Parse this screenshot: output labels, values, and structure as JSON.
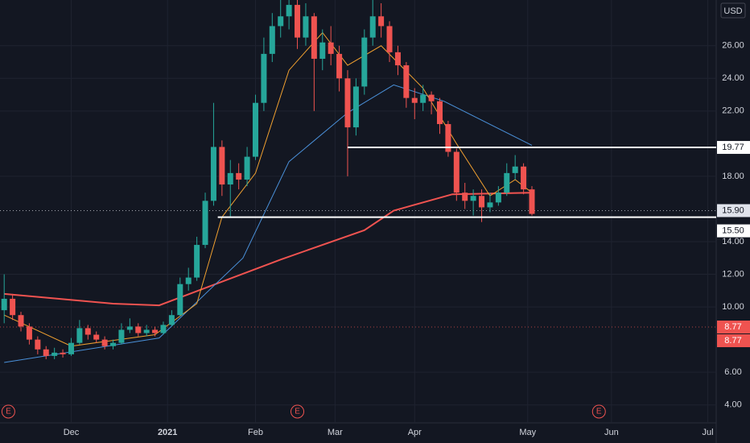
{
  "chart_data": {
    "type": "candlestick",
    "currency": "USD",
    "x": [
      -16,
      -14,
      -12,
      -10,
      -8,
      -6,
      -4,
      -2,
      0,
      2,
      4,
      6,
      8,
      10,
      12,
      14,
      16,
      18,
      20,
      22,
      24,
      26,
      28,
      30,
      32,
      34,
      36,
      38,
      40,
      42,
      44,
      46,
      48,
      50,
      52,
      54,
      56,
      58,
      60,
      62,
      64,
      66,
      68,
      70,
      72,
      74,
      76,
      78,
      80,
      82,
      84,
      86,
      88,
      90,
      92,
      94,
      96,
      98,
      100,
      102,
      104,
      106,
      108,
      110
    ],
    "open": [
      9.8,
      10.5,
      9.5,
      8.8,
      8.0,
      7.4,
      7.0,
      7.2,
      7.1,
      7.8,
      8.7,
      8.3,
      8.0,
      7.6,
      7.8,
      8.6,
      8.8,
      8.4,
      8.6,
      8.4,
      8.9,
      9.5,
      11.4,
      11.8,
      13.8,
      16.5,
      19.8,
      17.5,
      18.2,
      17.8,
      19.2,
      22.5,
      25.5,
      27.2,
      27.8,
      28.5,
      26.5,
      27.8,
      25.2,
      26.2,
      25.5,
      24.0,
      21.0,
      23.5,
      26.5,
      27.8,
      27.2,
      25.6,
      24.8,
      22.8,
      22.5,
      23.0,
      22.6,
      21.2,
      19.5,
      17.0,
      16.5,
      16.8,
      16.1,
      16.4,
      17.0,
      18.2,
      18.6,
      17.2
    ],
    "high": [
      12.0,
      10.8,
      9.7,
      9.0,
      8.2,
      7.6,
      7.5,
      7.4,
      8.1,
      9.2,
      8.9,
      8.5,
      8.2,
      8.0,
      9.0,
      9.3,
      9.0,
      8.9,
      8.8,
      9.1,
      9.8,
      11.8,
      12.4,
      14.3,
      17.0,
      22.5,
      20.2,
      19.0,
      18.8,
      19.8,
      23.0,
      26.5,
      28.0,
      28.8,
      28.8,
      28.8,
      28.6,
      28.0,
      27.0,
      27.2,
      26.0,
      24.5,
      24.0,
      27.0,
      28.8,
      28.6,
      27.5,
      26.0,
      25.0,
      23.4,
      23.6,
      23.2,
      22.8,
      21.4,
      19.7,
      17.6,
      17.2,
      17.2,
      17.0,
      17.4,
      18.8,
      19.3,
      18.8,
      17.4
    ],
    "low": [
      9.0,
      9.2,
      8.5,
      7.7,
      7.1,
      6.8,
      6.8,
      6.9,
      7.0,
      7.7,
      8.0,
      7.8,
      7.4,
      7.4,
      7.7,
      8.4,
      8.2,
      8.2,
      8.2,
      8.3,
      8.8,
      9.4,
      11.0,
      11.6,
      13.6,
      16.2,
      16.8,
      15.5,
      17.2,
      17.4,
      19.0,
      22.0,
      25.0,
      26.5,
      27.0,
      25.8,
      26.0,
      22.0,
      24.5,
      24.8,
      23.2,
      18.0,
      20.5,
      23.0,
      26.0,
      26.5,
      25.0,
      24.2,
      22.2,
      21.5,
      22.0,
      21.8,
      20.6,
      19.2,
      16.5,
      16.0,
      15.6,
      15.2,
      15.8,
      16.2,
      16.8,
      17.8,
      16.9,
      15.6
    ],
    "close": [
      10.5,
      9.5,
      8.8,
      8.0,
      7.4,
      7.0,
      7.2,
      7.1,
      7.8,
      8.7,
      8.3,
      8.0,
      7.6,
      7.8,
      8.6,
      8.8,
      8.4,
      8.6,
      8.4,
      8.9,
      9.5,
      11.4,
      11.8,
      13.8,
      16.5,
      19.8,
      17.5,
      18.2,
      17.8,
      19.2,
      22.5,
      25.5,
      27.2,
      27.8,
      28.5,
      26.5,
      27.8,
      25.2,
      26.2,
      25.5,
      24.0,
      21.0,
      23.5,
      26.5,
      27.8,
      27.2,
      25.6,
      24.8,
      22.8,
      22.5,
      23.0,
      22.6,
      21.2,
      19.5,
      17.0,
      16.5,
      16.8,
      16.1,
      16.4,
      17.0,
      18.2,
      18.6,
      17.2,
      15.7
    ],
    "up_color": "#26a69a",
    "down_color": "#ef5350",
    "series": [
      {
        "color": "#f05350",
        "x": [
          -16,
          10,
          21,
          50,
          70,
          77,
          91,
          110
        ],
        "values": [
          10.8,
          10.2,
          10.1,
          12.9,
          14.7,
          15.9,
          16.9,
          17.0
        ]
      },
      {
        "color": "#4a90d9",
        "x": [
          -16,
          21,
          41,
          52,
          66,
          77,
          89,
          110
        ],
        "values": [
          6.6,
          8.1,
          13.0,
          18.9,
          21.9,
          23.6,
          22.6,
          19.9
        ]
      },
      {
        "color": "#f0a030",
        "x": [
          -16,
          0,
          20,
          30,
          36,
          44,
          52,
          60,
          66,
          74,
          84,
          92,
          100,
          106,
          110
        ],
        "values": [
          9.5,
          7.6,
          8.3,
          10.2,
          15.5,
          18.2,
          24.5,
          26.8,
          24.8,
          26.0,
          23.4,
          20.0,
          16.8,
          17.8,
          17.0
        ]
      }
    ],
    "levels": [
      {
        "value": 19.77,
        "from": 66
      },
      {
        "value": 15.5,
        "from": 35
      }
    ],
    "price_labels": [
      {
        "value": 19.77,
        "label": "19.77",
        "color": "#ffffff"
      },
      {
        "value": 15.9,
        "label": "15.90",
        "color": "#e0e3eb"
      },
      {
        "value": 15.5,
        "label": "15.50",
        "color": "#ffffff"
      },
      {
        "value": 8.77,
        "label": "8.77",
        "color": "#ef5350"
      },
      {
        "value": 8.77,
        "label": "8.77",
        "color": "#ef5350"
      }
    ],
    "events": [
      {
        "x": -15,
        "label": "E"
      },
      {
        "x": 54,
        "label": "E"
      },
      {
        "x": 126,
        "label": "E"
      }
    ],
    "xlim": [
      -17,
      154
    ],
    "ylim": [
      2.9,
      28.8
    ],
    "xticks": [
      {
        "value": 0,
        "label": "Dec"
      },
      {
        "value": 23,
        "label": "2021"
      },
      {
        "value": 44,
        "label": "Feb"
      },
      {
        "value": 63,
        "label": "Mar"
      },
      {
        "value": 82,
        "label": "Apr"
      },
      {
        "value": 109,
        "label": "May"
      },
      {
        "value": 129,
        "label": "Jun"
      },
      {
        "value": 152,
        "label": "Jul"
      }
    ],
    "yticks": [
      {
        "value": 4,
        "label": "4.00"
      },
      {
        "value": 6,
        "label": "6.00"
      },
      {
        "value": 10,
        "label": "10.00"
      },
      {
        "value": 12,
        "label": "12.00"
      },
      {
        "value": 14,
        "label": "14.00"
      },
      {
        "value": 18,
        "label": "18.00"
      },
      {
        "value": 22,
        "label": "22.00"
      },
      {
        "value": 24,
        "label": "24.00"
      },
      {
        "value": 26,
        "label": "26.00"
      }
    ],
    "grid": true
  }
}
